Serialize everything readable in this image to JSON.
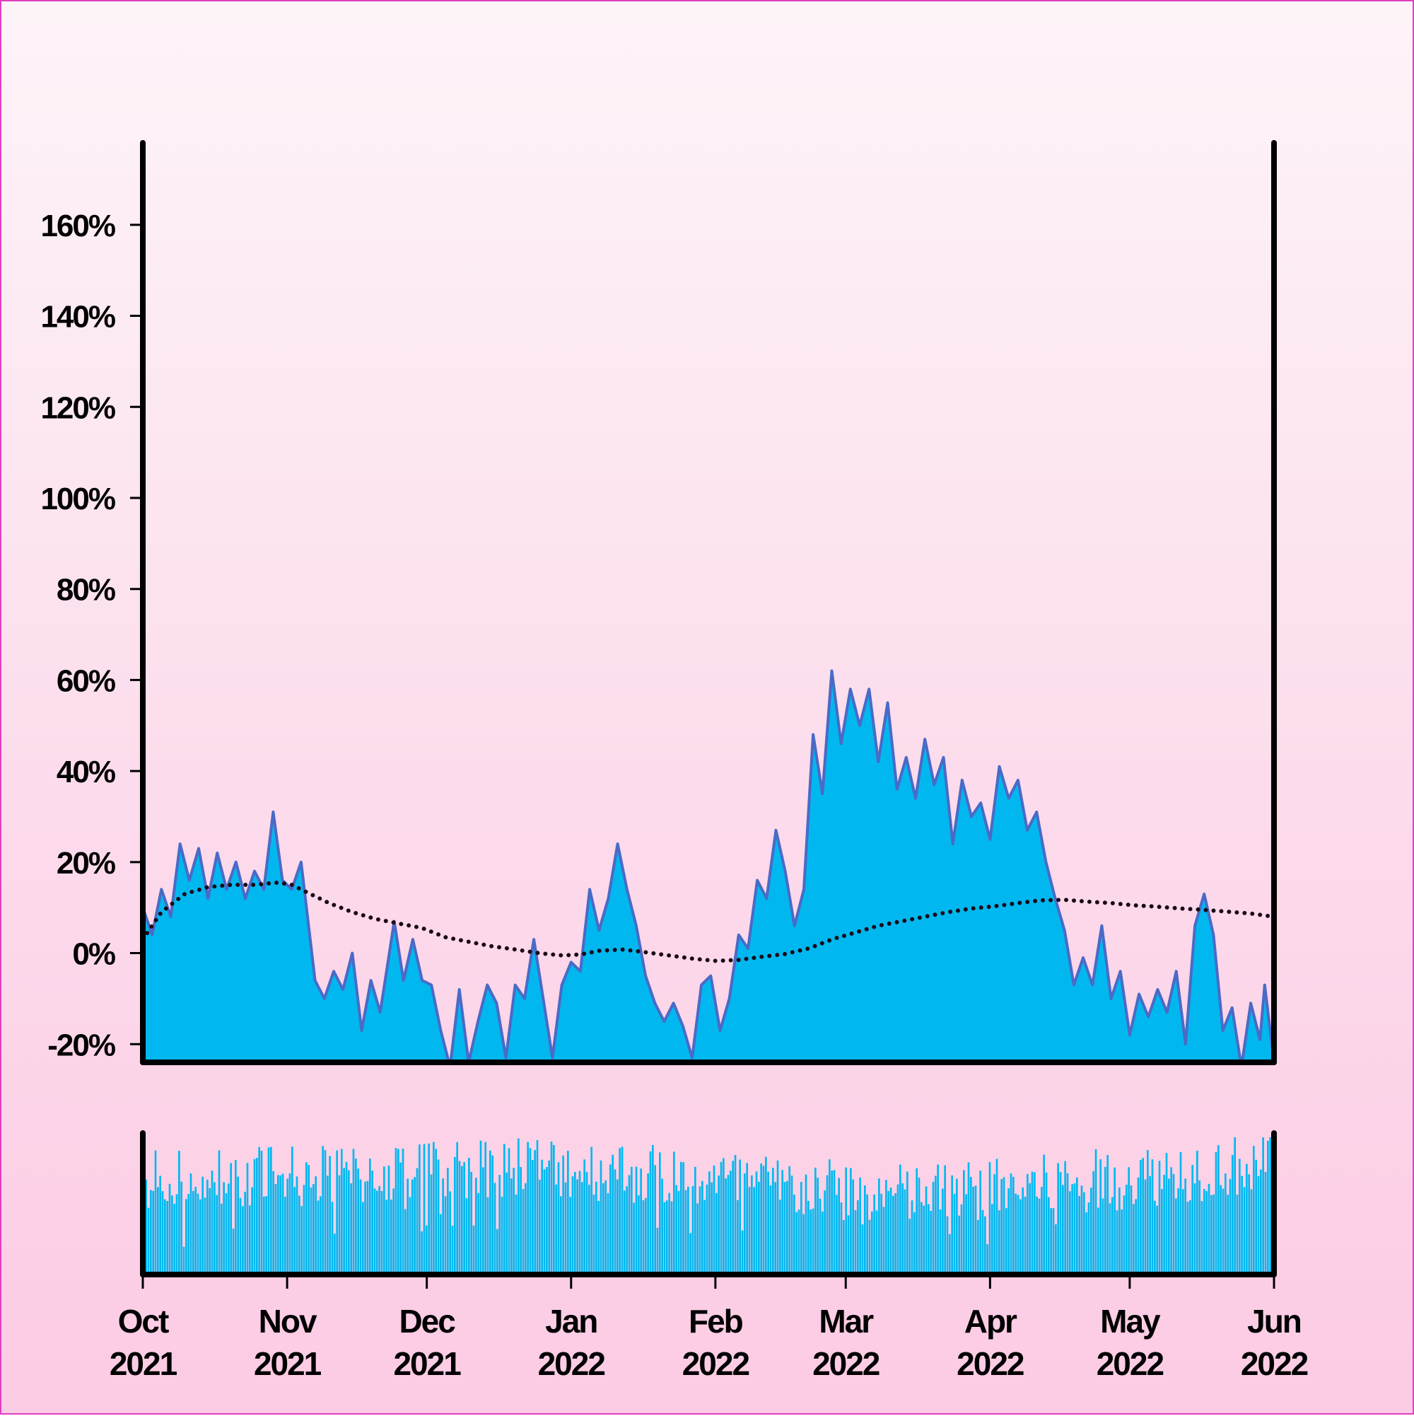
{
  "colors": {
    "area_fill": "#00b8ef",
    "area_line": "#4a6ac6",
    "trend": "#1a0a18",
    "volume_fill": "#00b8ef",
    "frame": "#000000"
  },
  "chart_data": {
    "type": "area",
    "title": "",
    "xlabel": "",
    "ylabel": "",
    "y_unit": "%",
    "x_range": [
      "2021-10-01",
      "2022-06-01"
    ],
    "ylim": [
      -24,
      178
    ],
    "y_ticks": [
      -20,
      0,
      20,
      40,
      60,
      80,
      100,
      120,
      140,
      160
    ],
    "y_tick_labels": [
      "-20%",
      "0%",
      "20%",
      "40%",
      "60%",
      "80%",
      "100%",
      "120%",
      "140%",
      "160%"
    ],
    "x_ticks": [
      "2021-10-01",
      "2021-11-01",
      "2021-12-01",
      "2022-01-01",
      "2022-02-01",
      "2022-03-01",
      "2022-04-01",
      "2022-05-01",
      "2022-06-01"
    ],
    "x_tick_labels": [
      {
        "month": "Oct",
        "year": "2021"
      },
      {
        "month": "Nov",
        "year": "2021"
      },
      {
        "month": "Dec",
        "year": "2021"
      },
      {
        "month": "Jan",
        "year": "2022"
      },
      {
        "month": "Feb",
        "year": "2022"
      },
      {
        "month": "Mar",
        "year": "2022"
      },
      {
        "month": "Apr",
        "year": "2022"
      },
      {
        "month": "May",
        "year": "2022"
      },
      {
        "month": "Jun",
        "year": "2022"
      }
    ],
    "grid": false,
    "legend": "none",
    "series": [
      {
        "kind": "area",
        "points": [
          [
            "2021-10-01",
            10
          ],
          [
            "2021-10-03",
            4
          ],
          [
            "2021-10-05",
            14
          ],
          [
            "2021-10-07",
            8
          ],
          [
            "2021-10-09",
            24
          ],
          [
            "2021-10-11",
            16
          ],
          [
            "2021-10-13",
            23
          ],
          [
            "2021-10-15",
            12
          ],
          [
            "2021-10-17",
            22
          ],
          [
            "2021-10-19",
            14
          ],
          [
            "2021-10-21",
            20
          ],
          [
            "2021-10-23",
            12
          ],
          [
            "2021-10-25",
            18
          ],
          [
            "2021-10-27",
            14
          ],
          [
            "2021-10-29",
            31
          ],
          [
            "2021-10-31",
            16
          ],
          [
            "2021-11-02",
            14
          ],
          [
            "2021-11-04",
            20
          ],
          [
            "2021-11-07",
            -6
          ],
          [
            "2021-11-09",
            -10
          ],
          [
            "2021-11-11",
            -4
          ],
          [
            "2021-11-13",
            -8
          ],
          [
            "2021-11-15",
            0
          ],
          [
            "2021-11-17",
            -17
          ],
          [
            "2021-11-19",
            -6
          ],
          [
            "2021-11-21",
            -13
          ],
          [
            "2021-11-24",
            7
          ],
          [
            "2021-11-26",
            -6
          ],
          [
            "2021-11-28",
            3
          ],
          [
            "2021-11-30",
            -6
          ],
          [
            "2021-12-02",
            -7
          ],
          [
            "2021-12-04",
            -17
          ],
          [
            "2021-12-06",
            -25
          ],
          [
            "2021-12-08",
            -8
          ],
          [
            "2021-12-10",
            -24
          ],
          [
            "2021-12-12",
            -15
          ],
          [
            "2021-12-14",
            -7
          ],
          [
            "2021-12-16",
            -11
          ],
          [
            "2021-12-18",
            -23
          ],
          [
            "2021-12-20",
            -7
          ],
          [
            "2021-12-22",
            -10
          ],
          [
            "2021-12-24",
            3
          ],
          [
            "2021-12-26",
            -10
          ],
          [
            "2021-12-28",
            -23
          ],
          [
            "2021-12-30",
            -7
          ],
          [
            "2022-01-01",
            -2
          ],
          [
            "2022-01-03",
            -4
          ],
          [
            "2022-01-05",
            14
          ],
          [
            "2022-01-07",
            5
          ],
          [
            "2022-01-09",
            12
          ],
          [
            "2022-01-11",
            24
          ],
          [
            "2022-01-13",
            14
          ],
          [
            "2022-01-15",
            6
          ],
          [
            "2022-01-17",
            -5
          ],
          [
            "2022-01-19",
            -11
          ],
          [
            "2022-01-21",
            -15
          ],
          [
            "2022-01-23",
            -11
          ],
          [
            "2022-01-25",
            -16
          ],
          [
            "2022-01-27",
            -23
          ],
          [
            "2022-01-29",
            -7
          ],
          [
            "2022-01-31",
            -5
          ],
          [
            "2022-02-02",
            -17
          ],
          [
            "2022-02-04",
            -10
          ],
          [
            "2022-02-06",
            4
          ],
          [
            "2022-02-08",
            1
          ],
          [
            "2022-02-10",
            16
          ],
          [
            "2022-02-12",
            12
          ],
          [
            "2022-02-14",
            27
          ],
          [
            "2022-02-16",
            18
          ],
          [
            "2022-02-18",
            6
          ],
          [
            "2022-02-20",
            14
          ],
          [
            "2022-02-22",
            48
          ],
          [
            "2022-02-24",
            35
          ],
          [
            "2022-02-26",
            62
          ],
          [
            "2022-02-28",
            46
          ],
          [
            "2022-03-02",
            58
          ],
          [
            "2022-03-04",
            50
          ],
          [
            "2022-03-06",
            58
          ],
          [
            "2022-03-08",
            42
          ],
          [
            "2022-03-10",
            55
          ],
          [
            "2022-03-12",
            36
          ],
          [
            "2022-03-14",
            43
          ],
          [
            "2022-03-16",
            34
          ],
          [
            "2022-03-18",
            47
          ],
          [
            "2022-03-20",
            37
          ],
          [
            "2022-03-22",
            43
          ],
          [
            "2022-03-24",
            24
          ],
          [
            "2022-03-26",
            38
          ],
          [
            "2022-03-28",
            30
          ],
          [
            "2022-03-30",
            33
          ],
          [
            "2022-04-01",
            25
          ],
          [
            "2022-04-03",
            41
          ],
          [
            "2022-04-05",
            34
          ],
          [
            "2022-04-07",
            38
          ],
          [
            "2022-04-09",
            27
          ],
          [
            "2022-04-11",
            31
          ],
          [
            "2022-04-13",
            20
          ],
          [
            "2022-04-15",
            12
          ],
          [
            "2022-04-17",
            5
          ],
          [
            "2022-04-19",
            -7
          ],
          [
            "2022-04-21",
            -1
          ],
          [
            "2022-04-23",
            -7
          ],
          [
            "2022-04-25",
            6
          ],
          [
            "2022-04-27",
            -10
          ],
          [
            "2022-04-29",
            -4
          ],
          [
            "2022-05-01",
            -18
          ],
          [
            "2022-05-03",
            -9
          ],
          [
            "2022-05-05",
            -14
          ],
          [
            "2022-05-07",
            -8
          ],
          [
            "2022-05-09",
            -13
          ],
          [
            "2022-05-11",
            -4
          ],
          [
            "2022-05-13",
            -20
          ],
          [
            "2022-05-15",
            6
          ],
          [
            "2022-05-17",
            13
          ],
          [
            "2022-05-19",
            4
          ],
          [
            "2022-05-21",
            -17
          ],
          [
            "2022-05-23",
            -12
          ],
          [
            "2022-05-25",
            -25
          ],
          [
            "2022-05-27",
            -11
          ],
          [
            "2022-05-29",
            -19
          ],
          [
            "2022-05-30",
            -7
          ],
          [
            "2022-06-01",
            -24
          ]
        ]
      },
      {
        "kind": "trend",
        "points": [
          [
            "2021-10-01",
            3
          ],
          [
            "2021-10-05",
            9
          ],
          [
            "2021-10-10",
            13
          ],
          [
            "2021-10-15",
            14.5
          ],
          [
            "2021-10-20",
            15
          ],
          [
            "2021-10-25",
            15
          ],
          [
            "2021-10-30",
            15.5
          ],
          [
            "2021-11-02",
            15
          ],
          [
            "2021-11-06",
            13
          ],
          [
            "2021-11-10",
            11
          ],
          [
            "2021-11-15",
            9
          ],
          [
            "2021-11-20",
            7.5
          ],
          [
            "2021-11-25",
            6.5
          ],
          [
            "2021-11-30",
            5.5
          ],
          [
            "2021-12-05",
            3.5
          ],
          [
            "2021-12-10",
            2.5
          ],
          [
            "2021-12-15",
            1.5
          ],
          [
            "2021-12-20",
            0.8
          ],
          [
            "2021-12-25",
            0
          ],
          [
            "2021-12-30",
            -0.5
          ],
          [
            "2022-01-03",
            -0.3
          ],
          [
            "2022-01-07",
            0.5
          ],
          [
            "2022-01-12",
            0.8
          ],
          [
            "2022-01-17",
            0.2
          ],
          [
            "2022-01-22",
            -0.5
          ],
          [
            "2022-01-27",
            -1.2
          ],
          [
            "2022-02-01",
            -1.7
          ],
          [
            "2022-02-06",
            -1.5
          ],
          [
            "2022-02-11",
            -0.8
          ],
          [
            "2022-02-16",
            -0.2
          ],
          [
            "2022-02-21",
            1
          ],
          [
            "2022-02-26",
            3
          ],
          [
            "2022-03-03",
            4.5
          ],
          [
            "2022-03-08",
            6
          ],
          [
            "2022-03-13",
            7
          ],
          [
            "2022-03-18",
            8
          ],
          [
            "2022-03-23",
            9
          ],
          [
            "2022-03-28",
            9.8
          ],
          [
            "2022-04-02",
            10.3
          ],
          [
            "2022-04-07",
            11
          ],
          [
            "2022-04-12",
            11.6
          ],
          [
            "2022-04-17",
            11.7
          ],
          [
            "2022-04-22",
            11.3
          ],
          [
            "2022-04-27",
            11
          ],
          [
            "2022-05-02",
            10.5
          ],
          [
            "2022-05-07",
            10.2
          ],
          [
            "2022-05-12",
            9.8
          ],
          [
            "2022-05-17",
            9.5
          ],
          [
            "2022-05-22",
            9.1
          ],
          [
            "2022-05-27",
            8.7
          ],
          [
            "2022-06-01",
            8
          ]
        ]
      }
    ],
    "volume": {
      "kind": "bar",
      "ylim": [
        0,
        1
      ],
      "seed": 73,
      "base_profile": [
        [
          "2021-10-01",
          0.65
        ],
        [
          "2021-11-15",
          0.7
        ],
        [
          "2021-12-20",
          0.78
        ],
        [
          "2022-01-15",
          0.72
        ],
        [
          "2022-02-15",
          0.62
        ],
        [
          "2022-03-15",
          0.56
        ],
        [
          "2022-04-10",
          0.62
        ],
        [
          "2022-05-05",
          0.7
        ],
        [
          "2022-06-01",
          0.8
        ]
      ]
    }
  }
}
